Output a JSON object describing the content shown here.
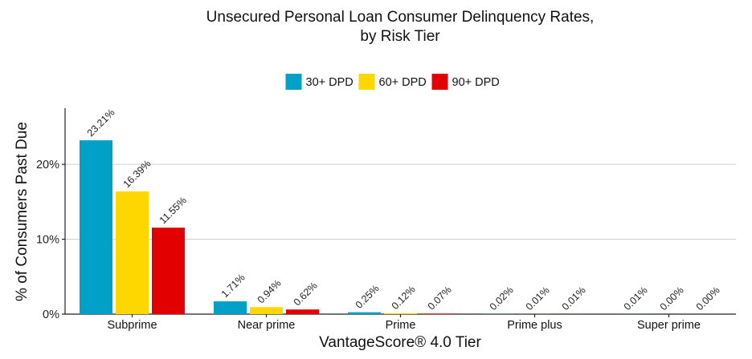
{
  "chart_data": {
    "type": "bar",
    "title_lines": [
      "Unsecured Personal Loan Consumer Delinquency Rates,",
      "by Risk Tier"
    ],
    "xlabel": "VantageScore® 4.0 Tier",
    "ylabel": "% of Consumers Past Due",
    "ylim": [
      0,
      27.5
    ],
    "yticks": [
      0,
      10,
      20
    ],
    "ytick_labels": [
      "0%",
      "10%",
      "20%"
    ],
    "grid": true,
    "legend_position": "top-center",
    "categories": [
      "Subprime",
      "Near prime",
      "Prime",
      "Prime plus",
      "Super prime"
    ],
    "series": [
      {
        "name": "30+ DPD",
        "color": "#00A0C8",
        "values": [
          23.21,
          1.71,
          0.25,
          0.02,
          0.01
        ],
        "labels": [
          "23.21%",
          "1.71%",
          "0.25%",
          "0.02%",
          "0.01%"
        ]
      },
      {
        "name": "60+ DPD",
        "color": "#FFD700",
        "values": [
          16.39,
          0.94,
          0.12,
          0.01,
          0.0
        ],
        "labels": [
          "16.39%",
          "0.94%",
          "0.12%",
          "0.01%",
          "0.00%"
        ]
      },
      {
        "name": "90+ DPD",
        "color": "#E30000",
        "values": [
          11.55,
          0.62,
          0.07,
          0.01,
          0.0
        ],
        "labels": [
          "11.55%",
          "0.62%",
          "0.07%",
          "0.01%",
          "0.00%"
        ]
      }
    ]
  }
}
